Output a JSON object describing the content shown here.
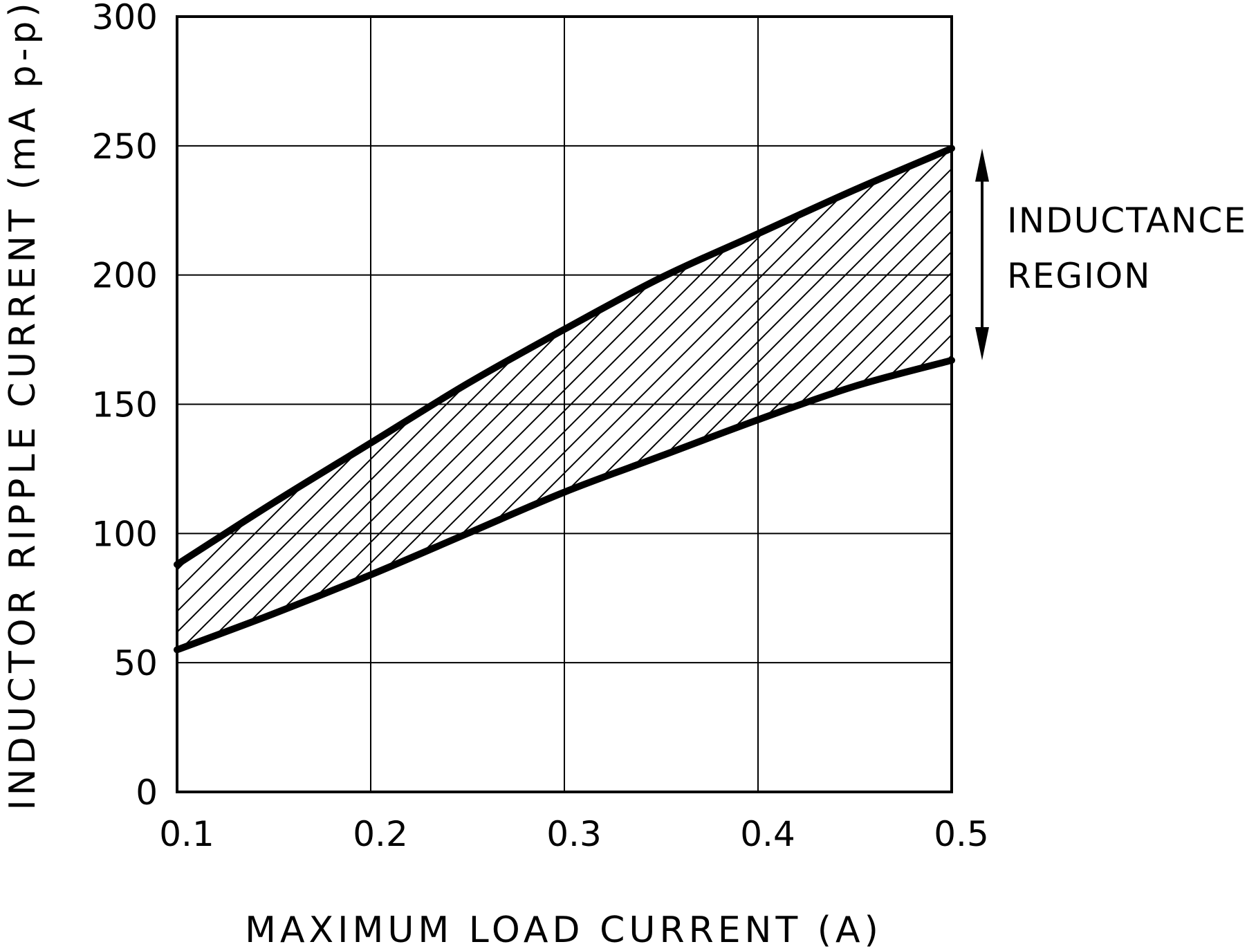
{
  "chart_data": {
    "type": "area",
    "title": "",
    "xlabel": "MAXIMUM LOAD CURRENT (A)",
    "ylabel": "INDUCTOR RIPPLE CURRENT (mA p-p)",
    "xlim": [
      0.1,
      0.5
    ],
    "ylim": [
      0,
      300
    ],
    "xticks": [
      0.1,
      0.2,
      0.3,
      0.4,
      0.5
    ],
    "xtick_labels": [
      "0.1",
      "0.2",
      "0.3",
      "0.4",
      "0.5"
    ],
    "yticks": [
      0,
      50,
      100,
      150,
      200,
      250,
      300
    ],
    "ytick_labels": [
      "0",
      "50",
      "100",
      "150",
      "200",
      "250",
      "300"
    ],
    "grid": true,
    "series": [
      {
        "role": "upper-bound",
        "x": [
          0.1,
          0.15,
          0.2,
          0.25,
          0.3,
          0.35,
          0.4,
          0.45,
          0.5
        ],
        "values": [
          88,
          112,
          135,
          158,
          179,
          199,
          216,
          233,
          249
        ]
      },
      {
        "role": "lower-bound",
        "x": [
          0.1,
          0.15,
          0.2,
          0.25,
          0.3,
          0.35,
          0.4,
          0.45,
          0.5
        ],
        "values": [
          55,
          69,
          84,
          100,
          116,
          130,
          144,
          157,
          167
        ]
      }
    ],
    "annotation": {
      "lines": [
        "INDUCTANCE",
        "REGION"
      ],
      "arrow_range": [
        249,
        167
      ]
    }
  }
}
